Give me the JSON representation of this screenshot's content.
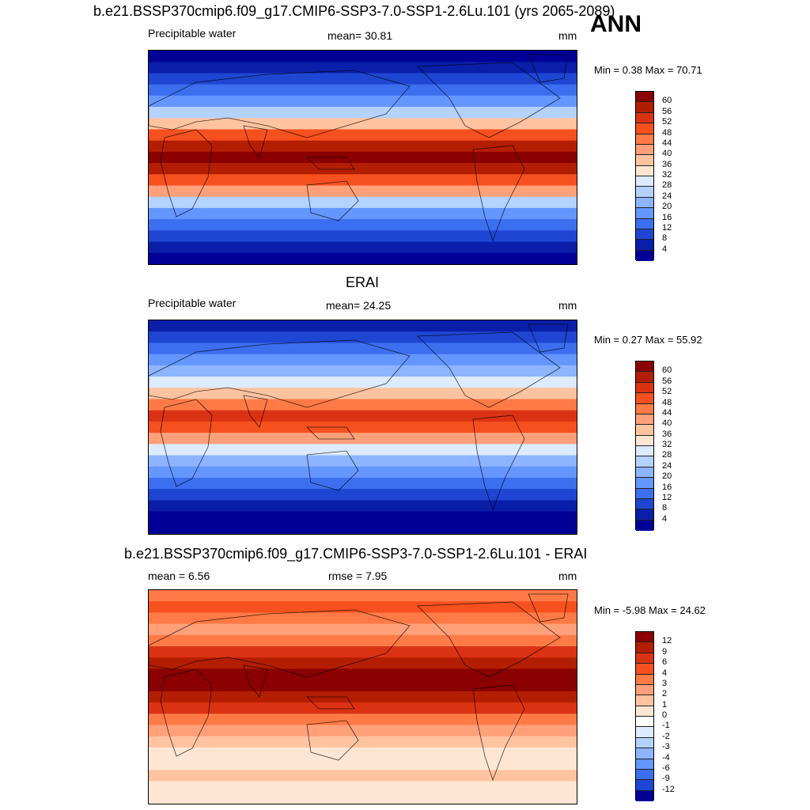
{
  "season": "ANN",
  "panels": [
    {
      "title": "b.e21.BSSP370cmip6.f09_g17.CMIP6-SSP3-7.0-SSP1-2.6Lu.101 (yrs 2065-2089)",
      "left_label": "Precipitable water",
      "center_label": "mean=  30.81",
      "units": "mm",
      "min_max": "Min =   0.38 Max =  70.71",
      "type": "field",
      "colorbar": {
        "labels": [
          "60",
          "56",
          "52",
          "48",
          "44",
          "40",
          "36",
          "32",
          "28",
          "24",
          "20",
          "16",
          "12",
          "8",
          "4"
        ],
        "colors": [
          "#8b0000",
          "#b41e00",
          "#dc3214",
          "#f5501e",
          "#ff7a46",
          "#ffa07a",
          "#ffc3a0",
          "#ffe6d2",
          "#dcebff",
          "#b4d2ff",
          "#8cb4ff",
          "#6496ff",
          "#3c6ef0",
          "#1e46d2",
          "#0a1eaa",
          "#000096"
        ]
      }
    },
    {
      "title": "ERAI",
      "left_label": "Precipitable water",
      "center_label": "mean=  24.25",
      "units": "mm",
      "min_max": "Min =   0.27 Max =  55.92",
      "type": "obs",
      "colorbar": {
        "labels": [
          "60",
          "56",
          "52",
          "48",
          "44",
          "40",
          "36",
          "32",
          "28",
          "24",
          "20",
          "16",
          "12",
          "8",
          "4"
        ],
        "colors": [
          "#8b0000",
          "#b41e00",
          "#dc3214",
          "#f5501e",
          "#ff7a46",
          "#ffa07a",
          "#ffc3a0",
          "#ffe6d2",
          "#dcebff",
          "#b4d2ff",
          "#8cb4ff",
          "#6496ff",
          "#3c6ef0",
          "#1e46d2",
          "#0a1eaa",
          "#000096"
        ]
      }
    },
    {
      "title": "b.e21.BSSP370cmip6.f09_g17.CMIP6-SSP3-7.0-SSP1-2.6Lu.101 - ERAI",
      "left_label": "mean =   6.56",
      "center_label": "rmse =   7.95",
      "units": "mm",
      "min_max": "Min =  -5.98 Max =  24.62",
      "type": "diff",
      "colorbar": {
        "labels": [
          "12",
          "9",
          "6",
          "4",
          "3",
          "2",
          "1",
          "0",
          "-1",
          "-2",
          "-3",
          "-4",
          "-6",
          "-9",
          "-12"
        ],
        "colors": [
          "#8b0000",
          "#b41e00",
          "#dc3214",
          "#f5501e",
          "#ff7a46",
          "#ffa07a",
          "#ffc3a0",
          "#ffe6d2",
          "#ffffff",
          "#dcebff",
          "#b4d2ff",
          "#8cb4ff",
          "#6496ff",
          "#3c6ef0",
          "#1e46d2",
          "#000096"
        ]
      }
    }
  ]
}
